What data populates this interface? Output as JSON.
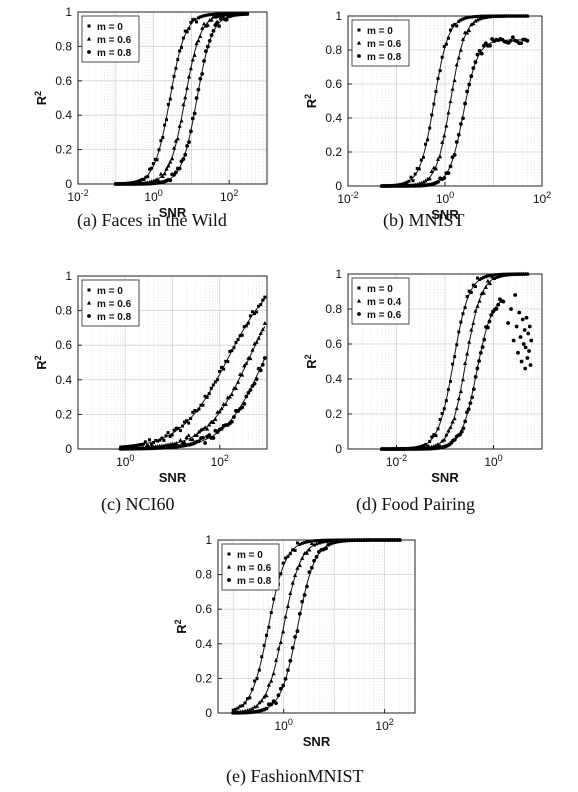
{
  "chart_data": [
    {
      "type": "scatter",
      "caption": "(a) Faces in the Wild",
      "xlabel": "SNR",
      "ylabel": "R",
      "xscale": "log",
      "xlim": [
        0.01,
        1000
      ],
      "ylim": [
        0,
        1
      ],
      "xticks": [
        {
          "v": 0.01,
          "base": "10",
          "exp": "-2"
        },
        {
          "v": 1,
          "base": "10",
          "exp": "0"
        },
        {
          "v": 100,
          "base": "10",
          "exp": "2"
        }
      ],
      "yticks": [
        "0",
        "0.2",
        "0.4",
        "0.6",
        "0.8",
        "1"
      ],
      "grid": true,
      "legend_position": "top-left",
      "series": [
        {
          "name": "m = 0",
          "marker": "square",
          "x_range": [
            0.1,
            300
          ],
          "x50": 2.7,
          "w": 0.9,
          "top": 0.99,
          "fit": true
        },
        {
          "name": "m = 0.6",
          "marker": "triangle",
          "x_range": [
            0.1,
            300
          ],
          "x50": 6.8,
          "w": 0.9,
          "top": 0.99,
          "fit": true
        },
        {
          "name": "m = 0.8",
          "marker": "circle",
          "x_range": [
            0.1,
            300
          ],
          "x50": 14,
          "w": 0.9,
          "top": 0.99,
          "fit": true
        }
      ]
    },
    {
      "type": "scatter",
      "caption": "(b) MNIST",
      "xlabel": "SNR",
      "ylabel": "R",
      "xscale": "log",
      "xlim": [
        0.01,
        100
      ],
      "ylim": [
        0,
        1
      ],
      "xticks": [
        {
          "v": 0.01,
          "base": "10",
          "exp": "-2"
        },
        {
          "v": 1,
          "base": "10",
          "exp": "0"
        },
        {
          "v": 100,
          "base": "10",
          "exp": "2"
        }
      ],
      "yticks": [
        "0",
        "0.2",
        "0.4",
        "0.6",
        "0.8",
        "1"
      ],
      "grid": true,
      "legend_position": "top-left",
      "series": [
        {
          "name": "m = 0",
          "marker": "square",
          "x_range": [
            0.05,
            50
          ],
          "x50": 0.6,
          "w": 0.65,
          "top": 1.0,
          "fit": true
        },
        {
          "name": "m = 0.6",
          "marker": "triangle",
          "x_range": [
            0.05,
            50
          ],
          "x50": 1.3,
          "w": 0.65,
          "top": 1.0,
          "fit": true
        },
        {
          "name": "m = 0.8",
          "marker": "circle",
          "x_range": [
            0.05,
            50
          ],
          "x50": 2.4,
          "w": 0.65,
          "top": 0.86,
          "fit": true
        }
      ]
    },
    {
      "type": "scatter",
      "caption": "(c) NCI60",
      "xlabel": "SNR",
      "ylabel": "R",
      "xscale": "log",
      "xlim": [
        0.1,
        1000
      ],
      "ylim": [
        0,
        1
      ],
      "xticks": [
        {
          "v": 1,
          "base": "10",
          "exp": "0"
        },
        {
          "v": 100,
          "base": "10",
          "exp": "2"
        }
      ],
      "yticks": [
        "0",
        "0.2",
        "0.4",
        "0.6",
        "0.8",
        "1"
      ],
      "grid": true,
      "legend_position": "top-left",
      "series": [
        {
          "name": "m = 0",
          "marker": "square",
          "x_range": [
            0.8,
            900
          ],
          "x50": 150,
          "w": 2.2,
          "top": 1.05,
          "fit": true
        },
        {
          "name": "m = 0.6",
          "marker": "triangle",
          "x_range": [
            0.8,
            900
          ],
          "x50": 420,
          "w": 2.0,
          "top": 1.05,
          "fit": true
        },
        {
          "name": "m = 0.8",
          "marker": "circle",
          "x_range": [
            0.8,
            900
          ],
          "x50": 900,
          "w": 1.9,
          "top": 1.05,
          "fit": true
        }
      ]
    },
    {
      "type": "scatter",
      "caption": "(d) Food Pairing",
      "xlabel": "SNR",
      "ylabel": "R",
      "xscale": "log",
      "xlim": [
        0.001,
        10
      ],
      "ylim": [
        0,
        1
      ],
      "xticks": [
        {
          "v": 0.01,
          "base": "10",
          "exp": "-2"
        },
        {
          "v": 1,
          "base": "10",
          "exp": "0"
        }
      ],
      "yticks": [
        "0",
        "0.2",
        "0.4",
        "0.6",
        "0.8",
        "1"
      ],
      "grid": true,
      "legend_position": "top-left",
      "series": [
        {
          "name": "m = 0",
          "marker": "square",
          "x_range": [
            0.005,
            5
          ],
          "x50": 0.15,
          "w": 0.7,
          "top": 1.0,
          "fit": true
        },
        {
          "name": "m = 0.4",
          "marker": "triangle",
          "x_range": [
            0.005,
            5
          ],
          "x50": 0.27,
          "w": 0.7,
          "top": 1.0,
          "fit": true
        },
        {
          "name": "m = 0.6",
          "marker": "circle",
          "x_range": [
            0.005,
            1.6
          ],
          "x50": 0.45,
          "w": 0.7,
          "top": 0.88,
          "fit": true,
          "extra_points": [
            [
              2.0,
              0.72
            ],
            [
              2.3,
              0.8
            ],
            [
              2.6,
              0.62
            ],
            [
              2.8,
              0.88
            ],
            [
              3.0,
              0.7
            ],
            [
              3.2,
              0.55
            ],
            [
              3.4,
              0.78
            ],
            [
              3.6,
              0.64
            ],
            [
              3.8,
              0.5
            ],
            [
              4.0,
              0.74
            ],
            [
              4.2,
              0.6
            ],
            [
              4.4,
              0.68
            ],
            [
              4.5,
              0.46
            ],
            [
              4.6,
              0.58
            ],
            [
              4.8,
              0.75
            ],
            [
              5.0,
              0.52
            ],
            [
              5.2,
              0.66
            ],
            [
              5.4,
              0.56
            ],
            [
              5.6,
              0.7
            ],
            [
              5.8,
              0.48
            ],
            [
              6.0,
              0.62
            ]
          ]
        }
      ]
    },
    {
      "type": "scatter",
      "caption": "(e) FashionMNIST",
      "xlabel": "SNR",
      "ylabel": "R",
      "xscale": "log",
      "xlim": [
        0.05,
        400
      ],
      "ylim": [
        0,
        1
      ],
      "xticks": [
        {
          "v": 1,
          "base": "10",
          "exp": "0"
        },
        {
          "v": 100,
          "base": "10",
          "exp": "2"
        }
      ],
      "yticks": [
        "0",
        "0.2",
        "0.4",
        "0.6",
        "0.8",
        "1"
      ],
      "grid": true,
      "legend_position": "top-left",
      "series": [
        {
          "name": "m = 0",
          "marker": "square",
          "x_range": [
            0.1,
            200
          ],
          "x50": 0.5,
          "w": 0.75,
          "top": 1.0,
          "fit": true
        },
        {
          "name": "m = 0.6",
          "marker": "triangle",
          "x_range": [
            0.1,
            200
          ],
          "x50": 1.0,
          "w": 0.75,
          "top": 1.0,
          "fit": true
        },
        {
          "name": "m = 0.8",
          "marker": "circle",
          "x_range": [
            0.1,
            200
          ],
          "x50": 1.9,
          "w": 0.75,
          "top": 1.0,
          "fit": true
        }
      ]
    }
  ]
}
